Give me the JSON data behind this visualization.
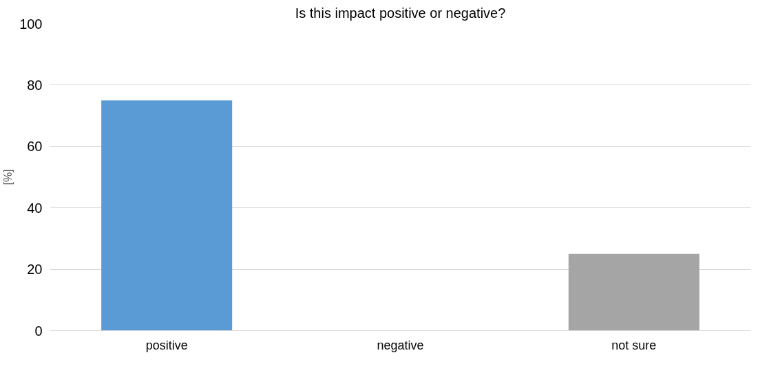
{
  "chart_data": {
    "type": "bar",
    "title": "Is this impact positive or negative?",
    "ylabel": "[%]",
    "categories": [
      "positive",
      "negative",
      "not sure"
    ],
    "values": [
      75,
      0,
      25
    ],
    "colors": [
      "#5b9bd5",
      "#ed7d31",
      "#a5a5a5"
    ],
    "ylim": [
      0,
      100
    ],
    "yticks": [
      0,
      20,
      40,
      60,
      80,
      100
    ],
    "grid": "y"
  }
}
